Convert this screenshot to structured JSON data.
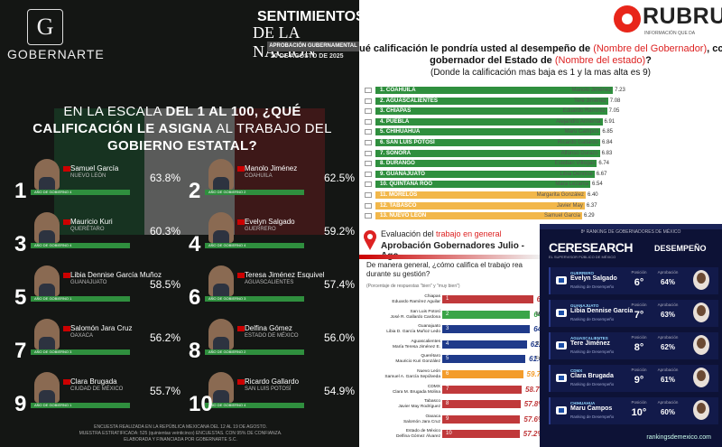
{
  "chart_data": [
    {
      "type": "bar",
      "panel": "gobernarte",
      "brand": "GOBERNARTE",
      "report_title": [
        "SENTIMIENTOS",
        "DE LA NACIÓN"
      ],
      "report_subtitle": "APROBACIÓN GUBERNAMENTAL",
      "date": "20 DE AGOSTO DE 2025",
      "question_parts": [
        "EN LA ESCALA ",
        "DEL 1 AL 100",
        ", ¿QUÉ CALIFICACIÓN LE ASIGNA",
        " AL TRABAJO DEL ",
        "GOBIERNO ESTATAL",
        "?"
      ],
      "items": [
        {
          "rank": "1",
          "name": "Samuel García",
          "state": "NUEVO LEÓN",
          "year": "AÑO DE GOBIERNO 4",
          "value": 63.8,
          "label": "63.8%"
        },
        {
          "rank": "2",
          "name": "Manolo Jiménez",
          "state": "COAHUILA",
          "year": "AÑO DE GOBIERNO 2",
          "value": 62.5,
          "label": "62.5%"
        },
        {
          "rank": "3",
          "name": "Mauricio Kuri",
          "state": "QUERÉTARO",
          "year": "AÑO DE GOBIERNO 4",
          "value": 60.3,
          "label": "60.3%"
        },
        {
          "rank": "4",
          "name": "Evelyn Salgado",
          "state": "GUERRERO",
          "year": "AÑO DE GOBIERNO 4",
          "value": 59.2,
          "label": "59.2%"
        },
        {
          "rank": "5",
          "name": "Libia Dennise García Muñoz",
          "state": "GUANAJUATO",
          "year": "AÑO DE GOBIERNO 1",
          "value": 58.5,
          "label": "58.5%"
        },
        {
          "rank": "6",
          "name": "Teresa Jiménez Esquivel",
          "state": "AGUASCALIENTES",
          "year": "AÑO DE GOBIERNO 3",
          "value": 57.4,
          "label": "57.4%"
        },
        {
          "rank": "7",
          "name": "Salomón Jara Cruz",
          "state": "OAXACA",
          "year": "AÑO DE GOBIERNO 3",
          "value": 56.2,
          "label": "56.2%"
        },
        {
          "rank": "8",
          "name": "Delfina Gómez",
          "state": "ESTADO DE MÉXICO",
          "year": "AÑO DE GOBIERNO 2",
          "value": 56.0,
          "label": "56.0%"
        },
        {
          "rank": "9",
          "name": "Clara Brugada",
          "state": "CIUDAD DE MÉXICO",
          "year": "AÑO DE GOBIERNO 1",
          "value": 55.7,
          "label": "55.7%"
        },
        {
          "rank": "10",
          "name": "Ricardo Gallardo",
          "state": "SAN LUIS POTOSÍ",
          "year": "AÑO DE GOBIERNO 4",
          "value": 54.9,
          "label": "54.9%"
        }
      ],
      "footnote": [
        "ENCUESTA REALIZADA EN LA REPÚBLICA MEXICANA DEL 12 AL 19 DE AGOSTO.",
        "MUESTRA ESTRATIFICADA: 525 (quinientas veinticinco) ENCUESTAS. CON 95% DE CONFIANZA.",
        "ELABORADA Y FINANCIADA POR GOBERNARTE S.C."
      ]
    },
    {
      "type": "bar",
      "panel": "rubrum",
      "brand": "RUBRUM",
      "brand_sub": "INFORMACIÓN QUE DA",
      "question": {
        "a": "ué calificación le pondría usted al desempeño de ",
        "b": "(Nombre del Gobernador)",
        "c": ", cc",
        "d": "gobernador del Estado de ",
        "e": "(Nombre del estado)",
        "f": "?",
        "g": "(Donde la calificación mas baja es 1 y la mas alta es 9)"
      },
      "xlim": [
        0,
        9
      ],
      "items": [
        {
          "label": "1. COAHUILA",
          "governor": "Manolo Jiménez",
          "value": 7.23,
          "value_label": "7.23",
          "color": "#2f8f3e"
        },
        {
          "label": "2. AGUASCALIENTES",
          "governor": "Tere Jiménez",
          "value": 7.08,
          "value_label": "7.08",
          "color": "#2f8f3e"
        },
        {
          "label": "3. CHIAPAS",
          "governor": "Eduardo Ramírez",
          "value": 7.05,
          "value_label": "7.05",
          "color": "#2f8f3e"
        },
        {
          "label": "4. PUEBLA",
          "governor": "Alejandro Armenta",
          "value": 6.91,
          "value_label": "6.91",
          "color": "#2f8f3e"
        },
        {
          "label": "5. CHIHUAHUA",
          "governor": "Maru Campos",
          "value": 6.85,
          "value_label": "6.85",
          "color": "#2f8f3e"
        },
        {
          "label": "6. SAN LUIS POTOSÍ",
          "governor": "Ricardo Gallardo",
          "value": 6.84,
          "value_label": "6.84",
          "color": "#2f8f3e"
        },
        {
          "label": "7. SONORA",
          "governor": "Alfonso Durazo",
          "value": 6.83,
          "value_label": "6.83",
          "color": "#2f8f3e"
        },
        {
          "label": "8. DURANGO",
          "governor": "Esteban Villegas",
          "value": 6.74,
          "value_label": "6.74",
          "color": "#2f8f3e"
        },
        {
          "label": "9. GUANAJUATO",
          "governor": "Libia Dennise",
          "value": 6.67,
          "value_label": "6.67",
          "color": "#2f8f3e"
        },
        {
          "label": "10. QUINTANA ROO",
          "governor": "Mara Lezama",
          "value": 6.54,
          "value_label": "6.54",
          "color": "#2f8f3e"
        },
        {
          "label": "11. MORELOS",
          "governor": "Margarita González",
          "value": 6.4,
          "value_label": "6.40",
          "color": "#f2b74a"
        },
        {
          "label": "12. TABASCO",
          "governor": "Javier May",
          "value": 6.37,
          "value_label": "6.37",
          "color": "#f2b74a"
        },
        {
          "label": "13. NUEVO LEÓN",
          "governor": "Samuel García",
          "value": 6.29,
          "value_label": "6.29",
          "color": "#f2b74a"
        }
      ]
    },
    {
      "type": "bar",
      "panel": "evaluacion",
      "title_a": "Evaluación del ",
      "title_b": "trabajo en general",
      "subtitle": "Aprobación Gobernadores Julio - Ago",
      "question": "De manera general, ¿cómo califica el trabajo rea durante su gestión?",
      "note": "(Porcentaje de respuestas \"bien\" y \"muy bien\")",
      "xlim": [
        0,
        100
      ],
      "items": [
        {
          "state": "Chiapas",
          "governor": "Eduardo Ramírez Aguilar",
          "rank": "1",
          "value": 67.1,
          "label": "67.1%",
          "color": "#c0393b",
          "side": ""
        },
        {
          "state": "San Luis Potosí",
          "governor": "José R. Gallardo Cardona",
          "rank": "2",
          "value": 64.9,
          "label": "64.9%",
          "color": "#3aa548",
          "side": "M"
        },
        {
          "state": "Guanajuato",
          "governor": "Libia D. García Muñoz Ledo",
          "rank": "3",
          "value": 64.8,
          "label": "64.8%",
          "color": "#1f3a8a",
          "side": ""
        },
        {
          "state": "Aguascalientes",
          "governor": "María Teresa Jiménez E.",
          "rank": "4",
          "value": 62.5,
          "label": "62.5%",
          "color": "#1f3a8a",
          "side": "C"
        },
        {
          "state": "Querétaro",
          "governor": "Mauricio Kuri González",
          "rank": "5",
          "value": 61.4,
          "label": "61.4%",
          "color": "#1f3a8a",
          "side": "Fr"
        },
        {
          "state": "Nuevo León",
          "governor": "Samuel A. García Sepúlveda",
          "rank": "6",
          "value": 59.7,
          "label": "59.7%",
          "color": "#f39c2b",
          "side": ""
        },
        {
          "state": "CDMX",
          "governor": "Clara M. Brugada Molina",
          "rank": "7",
          "value": 58.7,
          "label": "58.7%",
          "color": "#c0393b",
          "side": ""
        },
        {
          "state": "Tabasco",
          "governor": "Javier May Rodríguez",
          "rank": "8",
          "value": 57.8,
          "label": "57.8%",
          "color": "#c0393b",
          "side": ""
        },
        {
          "state": "Oaxaca",
          "governor": "Salomón Jara Cruz",
          "rank": "9",
          "value": 57.6,
          "label": "57.6%",
          "color": "#c0393b",
          "side": ""
        },
        {
          "state": "Estado de México",
          "governor": "Delfina Gómez Álvarez",
          "rank": "10",
          "value": 57.2,
          "label": "57.2%",
          "color": "#c0393b",
          "side": ""
        }
      ]
    },
    {
      "type": "table",
      "panel": "ce_research",
      "header": "8ª RANKING DE GOBERNADORES DE MÉXICO",
      "brand": "CERESEARCH",
      "brand_sub": "EL SUPERVISOR PÚBLICO DE MÉXICO",
      "section": "DESEMPEÑO",
      "col_position": "Posición",
      "col_approval": "Aprobación",
      "row_caption": "Ranking de Desempeño",
      "items": [
        {
          "state": "GUERRERO",
          "name": "Evelyn Salgado",
          "position": "6°",
          "approval": 64,
          "approval_label": "64%"
        },
        {
          "state": "GUANAJUATO",
          "name": "Libia Dennise García",
          "position": "7°",
          "approval": 63,
          "approval_label": "63%"
        },
        {
          "state": "AGUASCALIENTES",
          "name": "Tere Jiménez",
          "position": "8°",
          "approval": 62,
          "approval_label": "62%"
        },
        {
          "state": "CDMX",
          "name": "Clara Brugada",
          "position": "9°",
          "approval": 61,
          "approval_label": "61%"
        },
        {
          "state": "CHIHUAHUA",
          "name": "Maru Campos",
          "position": "10°",
          "approval": 60,
          "approval_label": "60%"
        }
      ],
      "url": "rankingsdemexico.com"
    }
  ]
}
